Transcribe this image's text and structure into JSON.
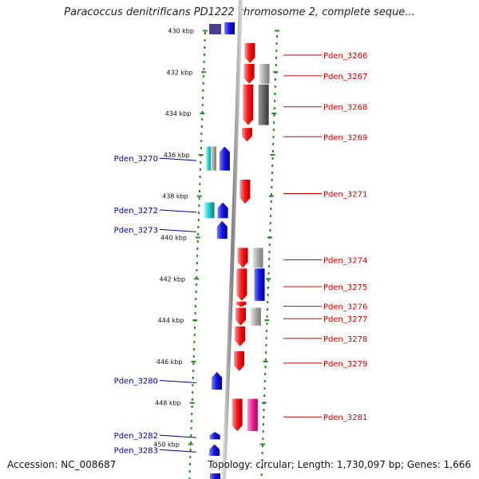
{
  "title": "Paracoccus denitrificans PD1222 chromosome 2, complete seque...",
  "accession": "Accession: NC_008687",
  "topology": "Topology: circular; Length: 1,730,097 bp; Genes: 1,666",
  "colors": {
    "axis": "#888888",
    "tick": "#228822",
    "forward_gene": "#ff1a1a",
    "reverse_gene": "#1a1aee",
    "cyan_feature": "#22cccc",
    "gray_feature": "#aaaaaa",
    "darkgray_feature": "#666666",
    "magenta_feature": "#ee2299",
    "right_label": "#cc0000",
    "left_label": "#000099"
  },
  "scale": {
    "start_kbp": 429.3,
    "end_kbp": 451.5,
    "tick_labels": [
      {
        "kbp": 430,
        "label": "430 kbp"
      },
      {
        "kbp": 432,
        "label": "432 kbp"
      },
      {
        "kbp": 434,
        "label": "434 kbp"
      },
      {
        "kbp": 436,
        "label": "436 kbp"
      },
      {
        "kbp": 438,
        "label": "438 kbp"
      },
      {
        "kbp": 440,
        "label": "440 kbp"
      },
      {
        "kbp": 442,
        "label": "442 kbp"
      },
      {
        "kbp": 444,
        "label": "444 kbp"
      },
      {
        "kbp": 446,
        "label": "446 kbp"
      },
      {
        "kbp": 448,
        "label": "448 kbp"
      },
      {
        "kbp": 450,
        "label": "450 kbp"
      }
    ]
  },
  "genes": [
    {
      "name": "Pden_3266",
      "strand": "+",
      "start": 430.6,
      "end": 431.6,
      "side": "right"
    },
    {
      "name": "Pden_3267",
      "strand": "+",
      "start": 431.6,
      "end": 432.6,
      "side": "right"
    },
    {
      "name": "Pden_3268",
      "strand": "+",
      "start": 432.6,
      "end": 434.6,
      "side": "right"
    },
    {
      "name": "Pden_3269",
      "strand": "+",
      "start": 434.7,
      "end": 435.4,
      "side": "right"
    },
    {
      "name": "Pden_3270",
      "strand": "-",
      "start": 435.6,
      "end": 436.8,
      "side": "left"
    },
    {
      "name": "Pden_3271",
      "strand": "+",
      "start": 437.2,
      "end": 438.4,
      "side": "right"
    },
    {
      "name": "Pden_3272",
      "strand": "-",
      "start": 438.3,
      "end": 439.1,
      "side": "left"
    },
    {
      "name": "Pden_3273",
      "strand": "-",
      "start": 439.2,
      "end": 440.1,
      "side": "left"
    },
    {
      "name": "Pden_3274",
      "strand": "+",
      "start": 440.5,
      "end": 441.5,
      "side": "right"
    },
    {
      "name": "Pden_3275",
      "strand": "+",
      "start": 441.5,
      "end": 443.1,
      "side": "right"
    },
    {
      "name": "Pden_3276",
      "strand": "+",
      "start": 443.1,
      "end": 443.4,
      "side": "right"
    },
    {
      "name": "Pden_3277",
      "strand": "+",
      "start": 443.4,
      "end": 444.3,
      "side": "right"
    },
    {
      "name": "Pden_3278",
      "strand": "+",
      "start": 444.3,
      "end": 445.3,
      "side": "right"
    },
    {
      "name": "Pden_3279",
      "strand": "+",
      "start": 445.5,
      "end": 446.5,
      "side": "right"
    },
    {
      "name": "Pden_3280",
      "strand": "-",
      "start": 446.5,
      "end": 447.4,
      "side": "left"
    },
    {
      "name": "Pden_3281",
      "strand": "+",
      "start": 447.8,
      "end": 449.4,
      "side": "right"
    },
    {
      "name": "Pden_3282",
      "strand": "-",
      "start": 449.4,
      "end": 449.8,
      "side": "left"
    },
    {
      "name": "Pden_3283",
      "strand": "-",
      "start": 450.0,
      "end": 450.6,
      "side": "left"
    }
  ],
  "features": [
    {
      "name": "rna-3267",
      "color": "gray",
      "start": 431.6,
      "end": 432.6,
      "side": "right"
    },
    {
      "name": "rna-3268",
      "color": "darkgray",
      "start": 432.6,
      "end": 434.6,
      "side": "right"
    },
    {
      "name": "cds-3270a",
      "color": "cyan",
      "start": 435.6,
      "end": 436.8,
      "side": "left"
    },
    {
      "name": "cds-3270b",
      "color": "gray",
      "start": 435.6,
      "end": 436.8,
      "side": "left"
    },
    {
      "name": "cds-3272",
      "color": "cyan",
      "start": 438.3,
      "end": 439.1,
      "side": "left"
    },
    {
      "name": "rna-3274",
      "color": "gray",
      "start": 440.5,
      "end": 441.5,
      "side": "right"
    },
    {
      "name": "cds-3275",
      "color": "blue",
      "start": 441.5,
      "end": 443.1,
      "side": "right"
    },
    {
      "name": "rna-3277",
      "color": "gray",
      "start": 443.4,
      "end": 444.3,
      "side": "right"
    },
    {
      "name": "cds-3281",
      "color": "magenta",
      "start": 447.8,
      "end": 449.4,
      "side": "right"
    }
  ]
}
